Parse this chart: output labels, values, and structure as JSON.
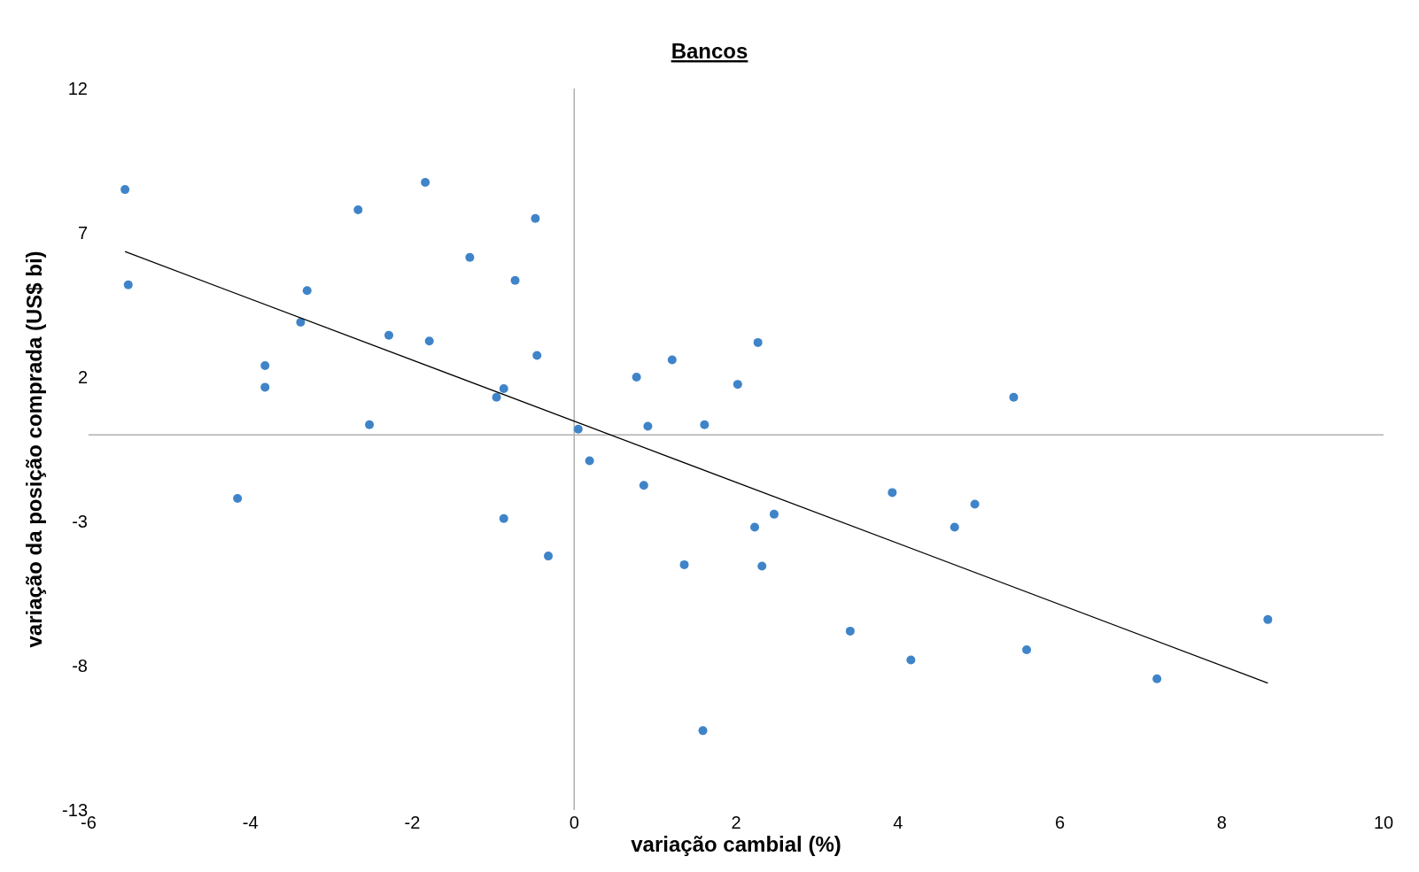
{
  "chart_data": {
    "type": "scatter",
    "title": "Bancos",
    "xlabel": "variação cambial (%)",
    "ylabel": "variação da posição comprada (US$ bi)",
    "xlim": [
      -6,
      10
    ],
    "xticks": [
      -6,
      -4,
      -2,
      0,
      2,
      4,
      6,
      8,
      10
    ],
    "ylim": [
      -13,
      12
    ],
    "yticks": [
      -13,
      -8,
      -3,
      2,
      7,
      12
    ],
    "marker": "circle",
    "series": [
      {
        "type": "scatter",
        "color": "#3f84c8",
        "x": [
          -5.55,
          -5.51,
          -4.16,
          -3.82,
          -3.82,
          -3.38,
          -3.3,
          -2.67,
          -2.53,
          -2.29,
          -1.84,
          -1.79,
          -1.29,
          -0.96,
          -0.87,
          -0.87,
          -0.73,
          -0.48,
          -0.46,
          -0.32,
          0.05,
          0.19,
          0.77,
          0.86,
          0.91,
          1.21,
          1.36,
          1.59,
          1.61,
          2.02,
          2.23,
          2.27,
          2.32,
          2.47,
          3.41,
          3.93,
          4.16,
          4.7,
          4.95,
          5.43,
          5.59,
          7.2,
          8.57
        ],
        "values": [
          8.5,
          5.2,
          -2.2,
          2.4,
          1.65,
          3.9,
          5.0,
          7.8,
          0.35,
          3.45,
          8.75,
          3.25,
          6.15,
          1.3,
          1.6,
          -2.9,
          5.35,
          7.5,
          2.75,
          -4.2,
          0.2,
          -0.9,
          2.0,
          -1.75,
          0.3,
          2.6,
          -4.5,
          -10.25,
          0.35,
          1.75,
          -3.2,
          3.2,
          -4.55,
          -2.75,
          -6.8,
          -2.0,
          -7.8,
          -3.2,
          -2.4,
          1.3,
          -7.45,
          -8.45,
          -6.4
        ]
      },
      {
        "type": "line",
        "color": "#000000",
        "marker": "none",
        "line_style": "solid",
        "x": [
          -5.55,
          8.57
        ],
        "values": [
          6.35,
          -8.6
        ]
      }
    ]
  }
}
